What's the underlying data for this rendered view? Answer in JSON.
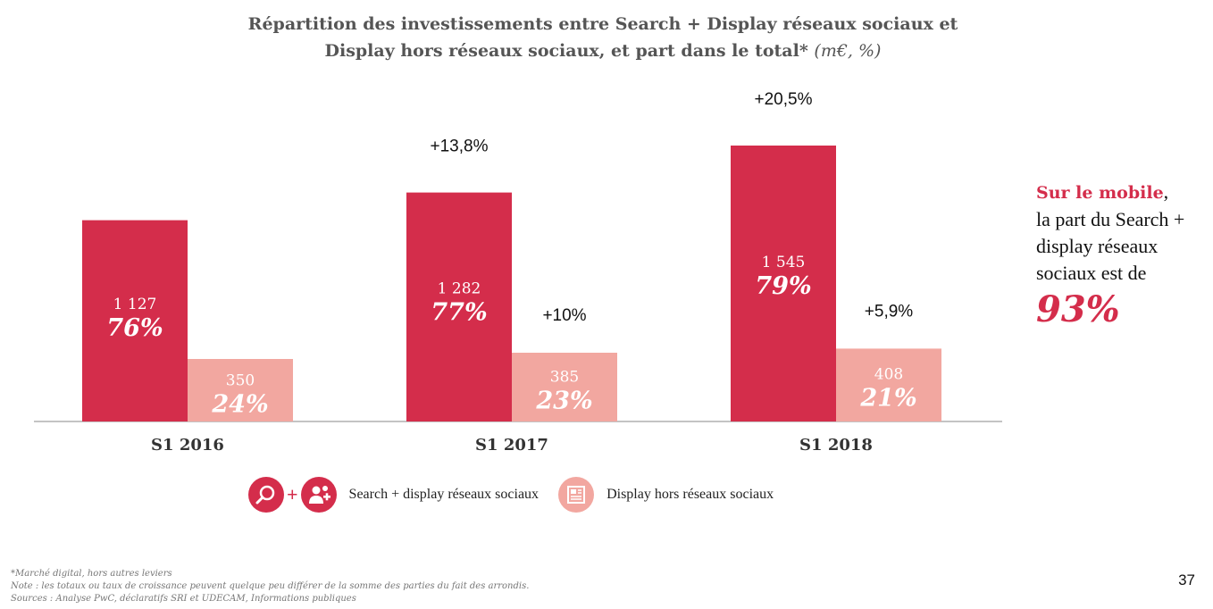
{
  "title": {
    "line1": "Répartition des investissements entre Search + Display réseaux sociaux et",
    "line2": "Display hors réseaux sociaux, et part dans le total*",
    "unit": "(m€, %)"
  },
  "colors": {
    "primary": "#d42d4b",
    "secondary": "#f2a7a0"
  },
  "chart_data": {
    "type": "bar",
    "categories": [
      "S1 2016",
      "S1 2017",
      "S1 2018"
    ],
    "series": [
      {
        "name": "Search + display réseaux sociaux",
        "values": [
          1127,
          1282,
          1545
        ],
        "value_labels": [
          "1 127",
          "1 282",
          "1 545"
        ],
        "share_labels": [
          "76%",
          "77%",
          "79%"
        ],
        "growth_labels": [
          "",
          "+13,8%",
          "+20,5%"
        ]
      },
      {
        "name": "Display hors réseaux sociaux",
        "values": [
          350,
          385,
          408
        ],
        "value_labels": [
          "350",
          "385",
          "408"
        ],
        "share_labels": [
          "24%",
          "23%",
          "21%"
        ],
        "growth_labels": [
          "",
          "+10%",
          "+5,9%"
        ]
      }
    ],
    "ylim": [
      0,
      1900
    ],
    "grid": false,
    "legend": "bottom"
  },
  "legend": {
    "items": [
      {
        "label": "Search + display réseaux sociaux",
        "icons": [
          "search-icon",
          "social-users-icon"
        ]
      },
      {
        "label": "Display hors réseaux sociaux",
        "icons": [
          "newspaper-icon"
        ]
      }
    ]
  },
  "sidebar": {
    "highlight": "Sur le mobile",
    "comma": ",",
    "text": "la part du Search + display réseaux sociaux est de",
    "value": "93%"
  },
  "footnotes": [
    "*Marché digital, hors autres leviers",
    "Note : les totaux ou taux de croissance peuvent quelque peu différer de la somme des parties du fait des arrondis.",
    "Sources : Analyse PwC, déclaratifs SRI et UDECAM, Informations publiques"
  ],
  "page_number": "37"
}
